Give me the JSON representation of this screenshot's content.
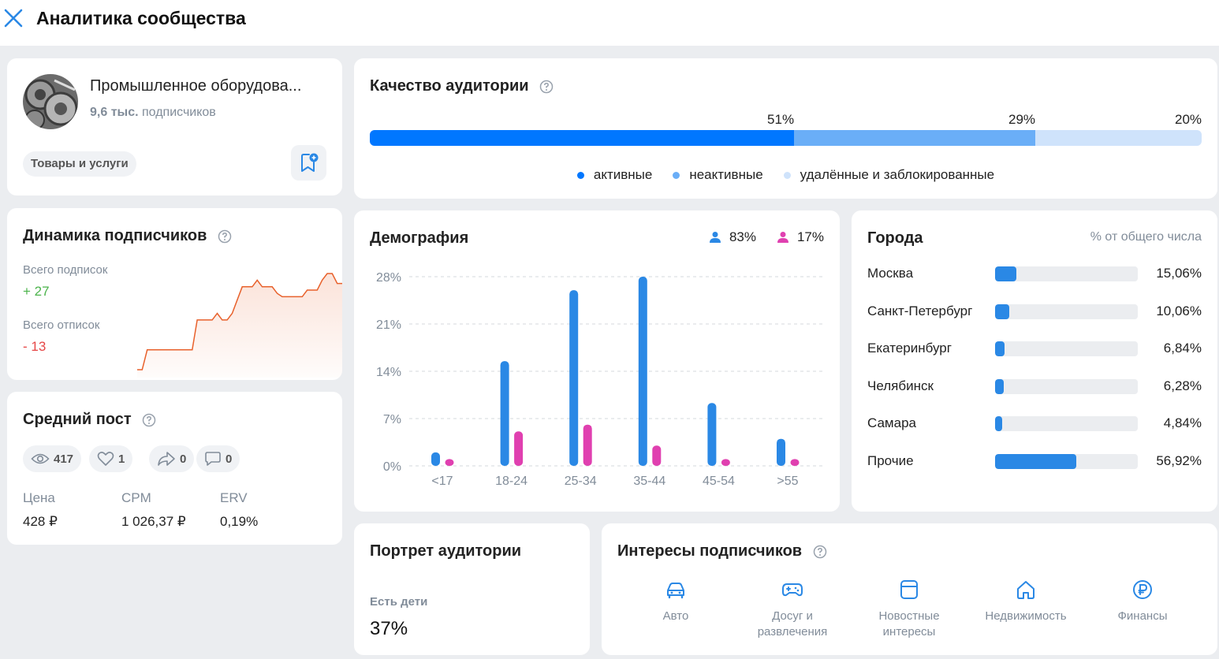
{
  "header": {
    "title": "Аналитика сообщества"
  },
  "community": {
    "name": "Промышленное оборудова...",
    "subs_count": "9,6 тыс.",
    "subs_label": "подписчиков",
    "category": "Товары и услуги"
  },
  "dynamics": {
    "title": "Динамика подписчиков",
    "subs_label": "Всего подписок",
    "subs_value": "+ 27",
    "unsubs_label": "Всего отписок",
    "unsubs_value": "- 13",
    "line_color": "#e8612c",
    "series": [
      0,
      0,
      6,
      6,
      6,
      6,
      6,
      6,
      6,
      6,
      6,
      6,
      15,
      15,
      15,
      15,
      17,
      15,
      15,
      17,
      21,
      25,
      25,
      25,
      27,
      25,
      25,
      25,
      23,
      22,
      22,
      22,
      22,
      22,
      24,
      24,
      24,
      27,
      29,
      29,
      26,
      26
    ]
  },
  "avg_post": {
    "title": "Средний пост",
    "stats": [
      {
        "icon": "eye-icon",
        "value": "417"
      },
      {
        "icon": "heart-icon",
        "value": "1"
      },
      {
        "icon": "share-icon",
        "value": "0"
      },
      {
        "icon": "comment-icon",
        "value": "0"
      }
    ],
    "price_label": "Цена",
    "price_value": "428 ₽",
    "cpm_label": "CPM",
    "cpm_value": "1 026,37 ₽",
    "erv_label": "ERV",
    "erv_value": "0,19%"
  },
  "quality": {
    "title": "Качество аудитории",
    "active_pct": "51%",
    "inactive_pct": "29%",
    "deleted_pct": "20%",
    "active_share": 51,
    "inactive_share": 29,
    "deleted_share": 20,
    "legend_active": "активные",
    "legend_inactive": "неактивные",
    "legend_deleted": "удалённые и заблокированные",
    "colors": {
      "active": "#0077ff",
      "inactive": "#6aaef7",
      "deleted": "#cfe3fb"
    }
  },
  "demography": {
    "title": "Демография",
    "male_pct": "83%",
    "female_pct": "17%",
    "colors": {
      "male": "#2a88e5",
      "female": "#e040b0"
    }
  },
  "chart_data": {
    "type": "bar",
    "title": "Демография",
    "categories": [
      "<17",
      "18-24",
      "25-34",
      "35-44",
      "45-54",
      ">55"
    ],
    "series": [
      {
        "name": "83%",
        "values": [
          2,
          15.5,
          26,
          28,
          9.3,
          4
        ]
      },
      {
        "name": "17%",
        "values": [
          1,
          5.1,
          6.1,
          3,
          1,
          1
        ]
      }
    ],
    "yticks": [
      "0%",
      "7%",
      "14%",
      "21%",
      "28%"
    ],
    "ylim": [
      0,
      28
    ],
    "grid": true
  },
  "cities": {
    "title": "Города",
    "subtitle": "% от общего числа",
    "items": [
      {
        "name": "Москва",
        "pct": "15,06%",
        "value": 15.06
      },
      {
        "name": "Санкт-Петербург",
        "pct": "10,06%",
        "value": 10.06
      },
      {
        "name": "Екатеринбург",
        "pct": "6,84%",
        "value": 6.84
      },
      {
        "name": "Челябинск",
        "pct": "6,28%",
        "value": 6.28
      },
      {
        "name": "Самара",
        "pct": "4,84%",
        "value": 4.84
      },
      {
        "name": "Прочие",
        "pct": "56,92%",
        "value": 56.92
      }
    ]
  },
  "portrait": {
    "title": "Портрет аудитории",
    "kids_label": "Есть дети",
    "kids_value": "37%"
  },
  "interests": {
    "title": "Интересы подписчиков",
    "items": [
      {
        "icon": "car-icon",
        "label": "Авто"
      },
      {
        "icon": "gamepad-icon",
        "label": "Досуг и развлечения"
      },
      {
        "icon": "news-icon",
        "label": "Новостные интересы"
      },
      {
        "icon": "house-icon",
        "label": "Недвижимость"
      },
      {
        "icon": "ruble-icon",
        "label": "Финансы"
      }
    ]
  }
}
